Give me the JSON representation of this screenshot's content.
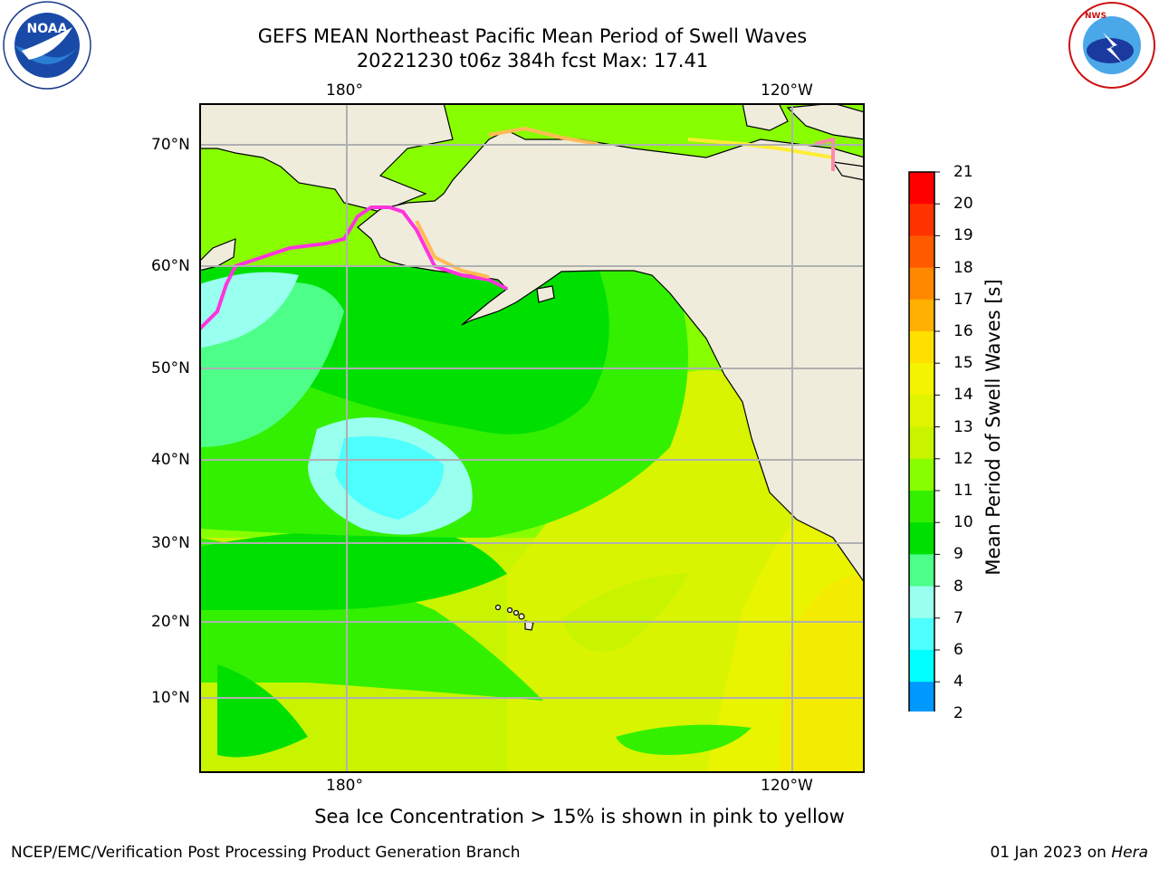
{
  "header": {
    "title_line1": "GEFS MEAN Northeast Pacific Mean Period of Swell Waves",
    "title_line2": "20221230 t06z 384h fcst   Max: 17.41"
  },
  "logos": {
    "left": "NOAA",
    "left_ring": "NATIONAL OCEANIC AND ATMOSPHERIC ADMINISTRATION · U.S. DEPARTMENT OF COMMERCE",
    "right_ring": "NATIONAL WEATHER SERVICE"
  },
  "map": {
    "lon_labels_top": [
      "180°",
      "120°W"
    ],
    "lon_labels_bottom": [
      "180°",
      "120°W"
    ],
    "lat_labels": [
      "70°N",
      "60°N",
      "50°N",
      "40°N",
      "30°N",
      "20°N",
      "10°N"
    ],
    "colors": {
      "land": "#efecdc",
      "grid": "#b0b0b0",
      "ice": [
        "#ff33dd",
        "#ff88aa",
        "#ffbb55",
        "#ffee33"
      ]
    }
  },
  "colorbar": {
    "label": "Mean Period of Swell Waves [s]",
    "ticks": [
      "21",
      "20",
      "19",
      "18",
      "17",
      "16",
      "15",
      "14",
      "13",
      "12",
      "11",
      "10",
      "9",
      "8",
      "7",
      "6",
      "4",
      "2"
    ],
    "colors": [
      "#ff0000",
      "#ff3300",
      "#ff5a00",
      "#ff8800",
      "#ffb000",
      "#ffe000",
      "#f4f400",
      "#e0f400",
      "#c8f400",
      "#88ff00",
      "#33f000",
      "#00e000",
      "#4dff88",
      "#99ffee",
      "#4dffff",
      "#00ffff",
      "#0099ff",
      "#0000ff"
    ]
  },
  "caption": "Sea Ice Concentration > 15% is shown in pink to yellow",
  "footer": {
    "left": "NCEP/EMC/Verification Post Processing Product Generation Branch",
    "right_date": "01 Jan 2023 on ",
    "right_host": "Hera"
  }
}
